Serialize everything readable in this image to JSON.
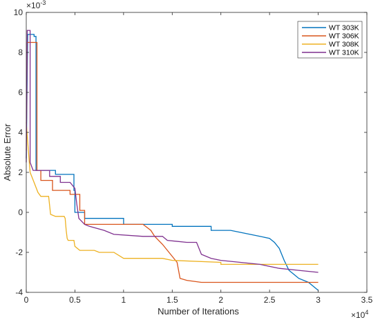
{
  "chart_data": {
    "type": "line",
    "title": "",
    "xlabel": "Number of Iterations",
    "ylabel": "Absolute Error",
    "x_exponent_label": "×10",
    "x_exponent_power": "4",
    "y_exponent_label": "×10",
    "y_exponent_power": "-3",
    "xlim": [
      0,
      35000
    ],
    "ylim": [
      -0.004,
      0.01
    ],
    "x_ticks": [
      0,
      5000,
      10000,
      15000,
      20000,
      25000,
      30000,
      35000
    ],
    "x_tick_labels": [
      "0",
      "0.5",
      "1",
      "1.5",
      "2",
      "2.5",
      "3",
      "3.5"
    ],
    "y_ticks": [
      -0.004,
      -0.002,
      0,
      0.002,
      0.004,
      0.006,
      0.008,
      0.01
    ],
    "y_tick_labels": [
      "-4",
      "-2",
      "0",
      "2",
      "4",
      "6",
      "8",
      "10"
    ],
    "grid": false,
    "legend_position": "top-right",
    "series": [
      {
        "name": "WT 303K",
        "color": "#0072BD",
        "points": [
          [
            0,
            0.0027
          ],
          [
            150,
            0.0089
          ],
          [
            800,
            0.0089
          ],
          [
            800,
            0.0088
          ],
          [
            1000,
            0.0088
          ],
          [
            1000,
            0.0021
          ],
          [
            2500,
            0.0021
          ],
          [
            2500,
            0.0021
          ],
          [
            3000,
            0.0021
          ],
          [
            3000,
            0.0019
          ],
          [
            4900,
            0.0019
          ],
          [
            4900,
            0.0011
          ],
          [
            5000,
            0.0011
          ],
          [
            5000,
            0.0
          ],
          [
            6000,
            0.0
          ],
          [
            6000,
            -0.0003
          ],
          [
            10000,
            -0.0003
          ],
          [
            10000,
            -0.0006
          ],
          [
            15000,
            -0.0006
          ],
          [
            15000,
            -0.0007
          ],
          [
            19000,
            -0.0007
          ],
          [
            19000,
            -0.0009
          ],
          [
            21000,
            -0.0009
          ],
          [
            22000,
            -0.001
          ],
          [
            23000,
            -0.0011
          ],
          [
            24000,
            -0.0012
          ],
          [
            25000,
            -0.0013
          ],
          [
            25500,
            -0.0015
          ],
          [
            26000,
            -0.0018
          ],
          [
            26500,
            -0.0024
          ],
          [
            27000,
            -0.0029
          ],
          [
            27500,
            -0.0031
          ],
          [
            28000,
            -0.0033
          ],
          [
            29000,
            -0.0035
          ],
          [
            29500,
            -0.0037
          ],
          [
            30000,
            -0.0039
          ]
        ]
      },
      {
        "name": "WT 306K",
        "color": "#D95319",
        "points": [
          [
            0,
            0.0031
          ],
          [
            100,
            0.0085
          ],
          [
            1100,
            0.0085
          ],
          [
            1100,
            0.0021
          ],
          [
            1500,
            0.0021
          ],
          [
            1500,
            0.0016
          ],
          [
            2700,
            0.0016
          ],
          [
            2700,
            0.0011
          ],
          [
            3500,
            0.0011
          ],
          [
            3500,
            0.0011
          ],
          [
            4500,
            0.0011
          ],
          [
            4500,
            0.0009
          ],
          [
            5500,
            0.0009
          ],
          [
            5500,
            0.0001
          ],
          [
            6000,
            0.0001
          ],
          [
            6000,
            -0.0006
          ],
          [
            10000,
            -0.0006
          ],
          [
            10000,
            -0.0006
          ],
          [
            12000,
            -0.0006
          ],
          [
            12800,
            -0.0009
          ],
          [
            13200,
            -0.0012
          ],
          [
            14000,
            -0.0016
          ],
          [
            15500,
            -0.0025
          ],
          [
            15800,
            -0.0033
          ],
          [
            16500,
            -0.0034
          ],
          [
            18000,
            -0.0035
          ],
          [
            20000,
            -0.0035
          ],
          [
            25000,
            -0.0035
          ],
          [
            30000,
            -0.0035
          ]
        ]
      },
      {
        "name": "WT 308K",
        "color": "#EDB120",
        "points": [
          [
            0,
            0.0045
          ],
          [
            200,
            0.0032
          ],
          [
            400,
            0.002
          ],
          [
            800,
            0.0015
          ],
          [
            1200,
            0.001
          ],
          [
            1500,
            0.0008
          ],
          [
            2300,
            0.0008
          ],
          [
            2500,
            -0.0001
          ],
          [
            3000,
            -0.0002
          ],
          [
            3900,
            -0.0002
          ],
          [
            4000,
            -0.0003
          ],
          [
            4100,
            -0.0009
          ],
          [
            4200,
            -0.0013
          ],
          [
            4300,
            -0.0014
          ],
          [
            4900,
            -0.0014
          ],
          [
            5000,
            -0.0017
          ],
          [
            5500,
            -0.0019
          ],
          [
            7000,
            -0.0019
          ],
          [
            7500,
            -0.002
          ],
          [
            9000,
            -0.002
          ],
          [
            10000,
            -0.0023
          ],
          [
            14000,
            -0.0023
          ],
          [
            15000,
            -0.0024
          ],
          [
            20000,
            -0.0025
          ],
          [
            20000,
            -0.0026
          ],
          [
            25000,
            -0.0026
          ],
          [
            30000,
            -0.0026
          ]
        ]
      },
      {
        "name": "WT 310K",
        "color": "#7E2F8E",
        "points": [
          [
            0,
            0.0025
          ],
          [
            100,
            0.0091
          ],
          [
            400,
            0.0091
          ],
          [
            400,
            0.0025
          ],
          [
            700,
            0.0021
          ],
          [
            2400,
            0.0021
          ],
          [
            2400,
            0.0018
          ],
          [
            3500,
            0.0018
          ],
          [
            3500,
            0.0015
          ],
          [
            4500,
            0.0015
          ],
          [
            5000,
            0.0012
          ],
          [
            5200,
            0.0004
          ],
          [
            5400,
            -0.0003
          ],
          [
            6000,
            -0.0006
          ],
          [
            6500,
            -0.0007
          ],
          [
            8000,
            -0.0009
          ],
          [
            9000,
            -0.0011
          ],
          [
            12000,
            -0.0012
          ],
          [
            14000,
            -0.0012
          ],
          [
            14500,
            -0.0014
          ],
          [
            16500,
            -0.0015
          ],
          [
            17500,
            -0.0015
          ],
          [
            18000,
            -0.0021
          ],
          [
            19000,
            -0.0023
          ],
          [
            20000,
            -0.0024
          ],
          [
            22000,
            -0.0025
          ],
          [
            24000,
            -0.0026
          ],
          [
            26000,
            -0.0028
          ],
          [
            28000,
            -0.0029
          ],
          [
            30000,
            -0.003
          ]
        ]
      }
    ]
  }
}
